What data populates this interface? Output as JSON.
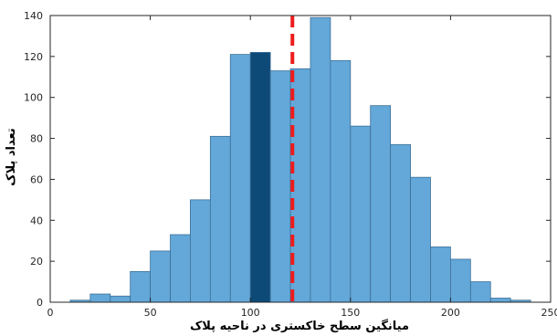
{
  "chart_data": {
    "type": "bar",
    "title": "",
    "xlabel": "میانگین سطح خاکستری در ناحیه پلاک",
    "ylabel": "تعداد پلاک",
    "xlim": [
      0,
      250
    ],
    "ylim": [
      0,
      140
    ],
    "xticks": [
      0,
      50,
      100,
      150,
      200,
      250
    ],
    "yticks": [
      0,
      20,
      40,
      60,
      80,
      100,
      120,
      140
    ],
    "bin_width": 10,
    "bins": [
      {
        "x0": 10,
        "x1": 20,
        "count": 1
      },
      {
        "x0": 20,
        "x1": 30,
        "count": 4
      },
      {
        "x0": 30,
        "x1": 40,
        "count": 3
      },
      {
        "x0": 40,
        "x1": 50,
        "count": 15
      },
      {
        "x0": 50,
        "x1": 60,
        "count": 25
      },
      {
        "x0": 60,
        "x1": 70,
        "count": 33
      },
      {
        "x0": 70,
        "x1": 80,
        "count": 50
      },
      {
        "x0": 80,
        "x1": 90,
        "count": 81
      },
      {
        "x0": 90,
        "x1": 100,
        "count": 121
      },
      {
        "x0": 100,
        "x1": 110,
        "count": 122,
        "highlighted": true
      },
      {
        "x0": 110,
        "x1": 120,
        "count": 113
      },
      {
        "x0": 120,
        "x1": 130,
        "count": 114
      },
      {
        "x0": 130,
        "x1": 140,
        "count": 139
      },
      {
        "x0": 140,
        "x1": 150,
        "count": 118
      },
      {
        "x0": 150,
        "x1": 160,
        "count": 86
      },
      {
        "x0": 160,
        "x1": 170,
        "count": 96
      },
      {
        "x0": 170,
        "x1": 180,
        "count": 77
      },
      {
        "x0": 180,
        "x1": 190,
        "count": 61
      },
      {
        "x0": 190,
        "x1": 200,
        "count": 27
      },
      {
        "x0": 200,
        "x1": 210,
        "count": 21
      },
      {
        "x0": 210,
        "x1": 220,
        "count": 10
      },
      {
        "x0": 220,
        "x1": 230,
        "count": 2
      },
      {
        "x0": 230,
        "x1": 240,
        "count": 1
      }
    ],
    "vline": {
      "x": 121,
      "style": "dashed"
    },
    "grid": false,
    "legend": "none",
    "colors": {
      "bar": "#63a8d9",
      "bar_edge": "#3c6f97",
      "highlight": "#0e4a78",
      "vline": "#ee1c1c"
    }
  }
}
